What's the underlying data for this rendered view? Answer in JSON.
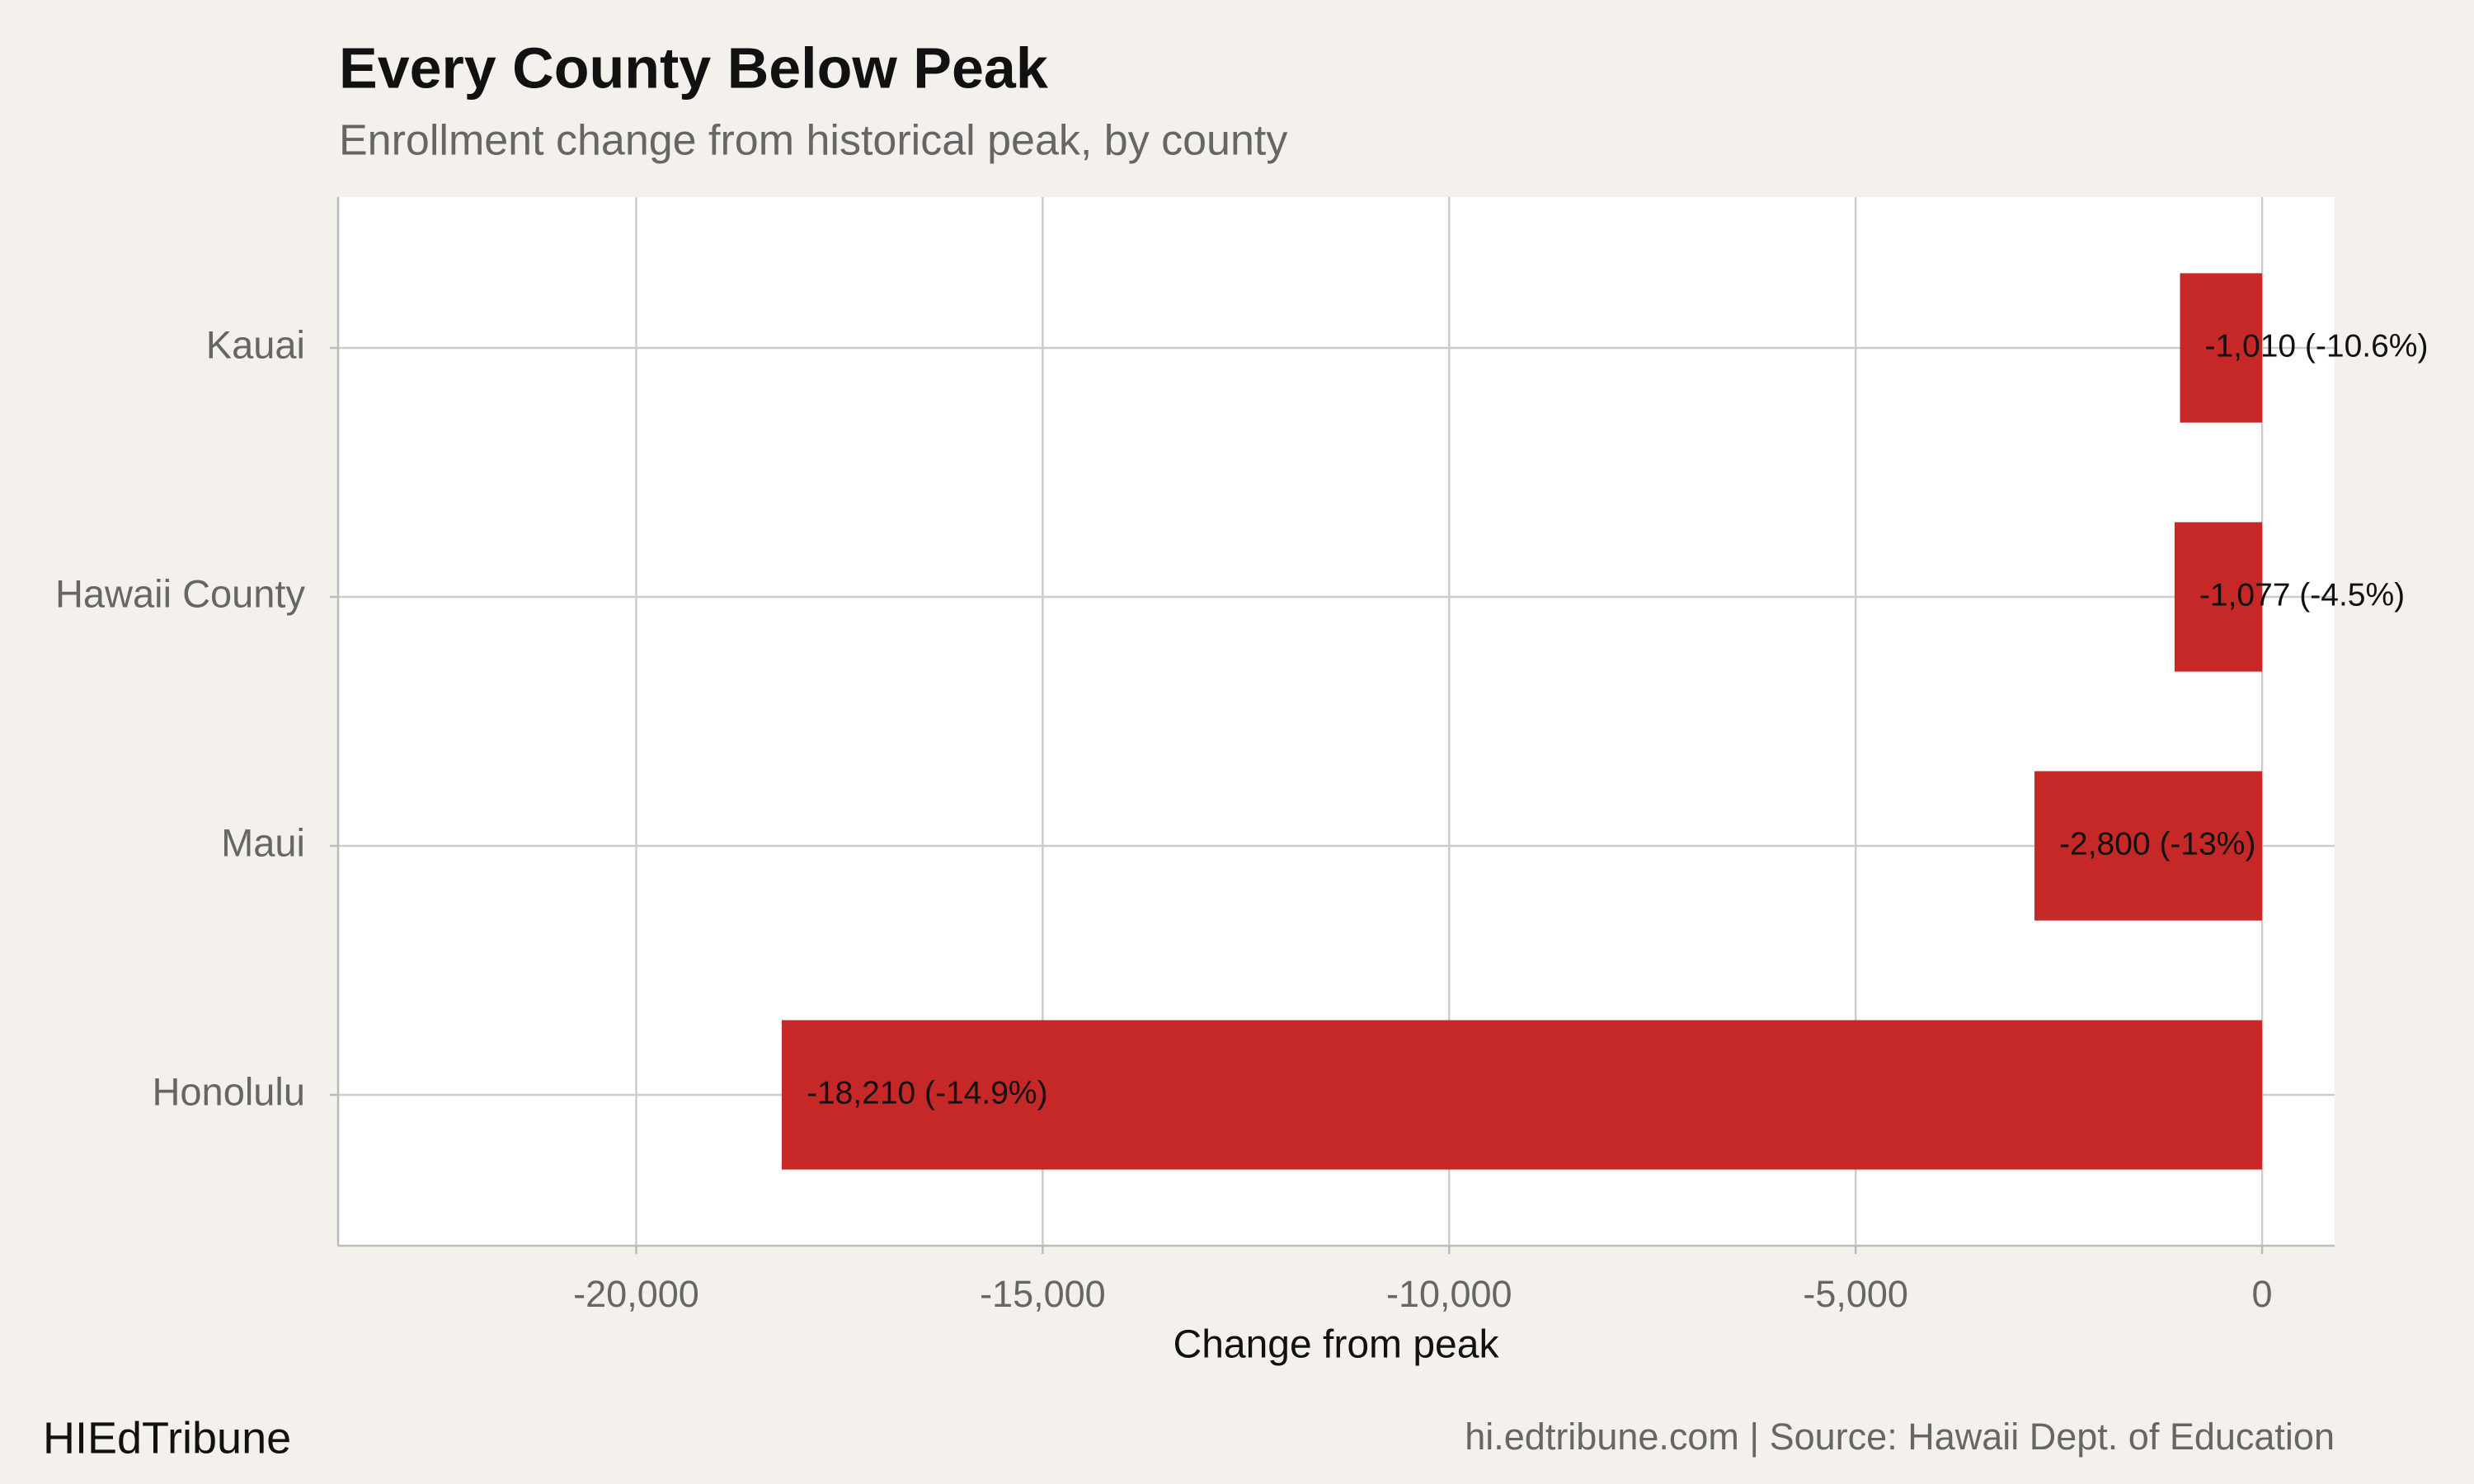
{
  "chart_data": {
    "type": "bar",
    "orientation": "horizontal",
    "title": "Every County Below Peak",
    "subtitle": "Enrollment change from historical peak, by county",
    "x_label": "Change from peak",
    "categories": [
      "Kauai",
      "Hawaii County",
      "Maui",
      "Honolulu"
    ],
    "values": [
      -1010,
      -1077,
      -2800,
      -18210
    ],
    "value_labels": [
      "-1,010 (-10.6%)",
      "-1,077 (-4.5%)",
      "-2,800 (-13%)",
      "-18,210 (-14.9%)"
    ],
    "color": "#c62828",
    "xlim": [
      -23667,
      892
    ],
    "xticks": [
      {
        "value": -20000,
        "label": "-20,000"
      },
      {
        "value": -15000,
        "label": "-15,000"
      },
      {
        "value": -10000,
        "label": "-10,000"
      },
      {
        "value": -5000,
        "label": "-5,000"
      },
      0
    ],
    "grid": true,
    "brand": "HIEdTribune",
    "caption": "hi.edtribune.com | Source: Hawaii Dept. of Education"
  }
}
